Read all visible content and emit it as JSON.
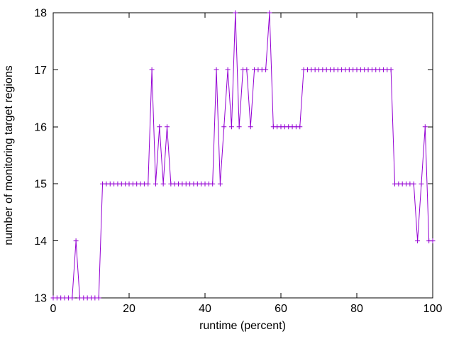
{
  "chart_data": {
    "type": "line",
    "title": "",
    "xlabel": "runtime (percent)",
    "ylabel": "number of monitoring target regions",
    "xlim": [
      0,
      100
    ],
    "ylim": [
      13,
      18
    ],
    "xticks": [
      0,
      20,
      40,
      60,
      80,
      100
    ],
    "yticks": [
      13,
      14,
      15,
      16,
      17,
      18
    ],
    "grid": false,
    "legend": "none",
    "marker": "plus",
    "line_color": "#9400D3",
    "border_color": "#000000",
    "background": "#ffffff",
    "x": [
      0,
      1,
      2,
      3,
      4,
      5,
      6,
      7,
      8,
      9,
      10,
      11,
      12,
      13,
      14,
      15,
      16,
      17,
      18,
      19,
      20,
      21,
      22,
      23,
      24,
      25,
      26,
      27,
      28,
      29,
      30,
      31,
      32,
      33,
      34,
      35,
      36,
      37,
      38,
      39,
      40,
      41,
      42,
      43,
      44,
      45,
      46,
      47,
      48,
      49,
      50,
      51,
      52,
      53,
      54,
      55,
      56,
      57,
      58,
      59,
      60,
      61,
      62,
      63,
      64,
      65,
      66,
      67,
      68,
      69,
      70,
      71,
      72,
      73,
      74,
      75,
      76,
      77,
      78,
      79,
      80,
      81,
      82,
      83,
      84,
      85,
      86,
      87,
      88,
      89,
      90,
      91,
      92,
      93,
      94,
      95,
      96,
      97,
      98,
      99,
      100
    ],
    "values": [
      13,
      13,
      13,
      13,
      13,
      13,
      14,
      13,
      13,
      13,
      13,
      13,
      13,
      15,
      15,
      15,
      15,
      15,
      15,
      15,
      15,
      15,
      15,
      15,
      15,
      15,
      17,
      15,
      16,
      15,
      16,
      15,
      15,
      15,
      15,
      15,
      15,
      15,
      15,
      15,
      15,
      15,
      15,
      17,
      15,
      16,
      17,
      16,
      18,
      16,
      17,
      17,
      16,
      17,
      17,
      17,
      17,
      18,
      16,
      16,
      16,
      16,
      16,
      16,
      16,
      16,
      17,
      17,
      17,
      17,
      17,
      17,
      17,
      17,
      17,
      17,
      17,
      17,
      17,
      17,
      17,
      17,
      17,
      17,
      17,
      17,
      17,
      17,
      17,
      17,
      15,
      15,
      15,
      15,
      15,
      15,
      14,
      15,
      16,
      14,
      14
    ]
  }
}
